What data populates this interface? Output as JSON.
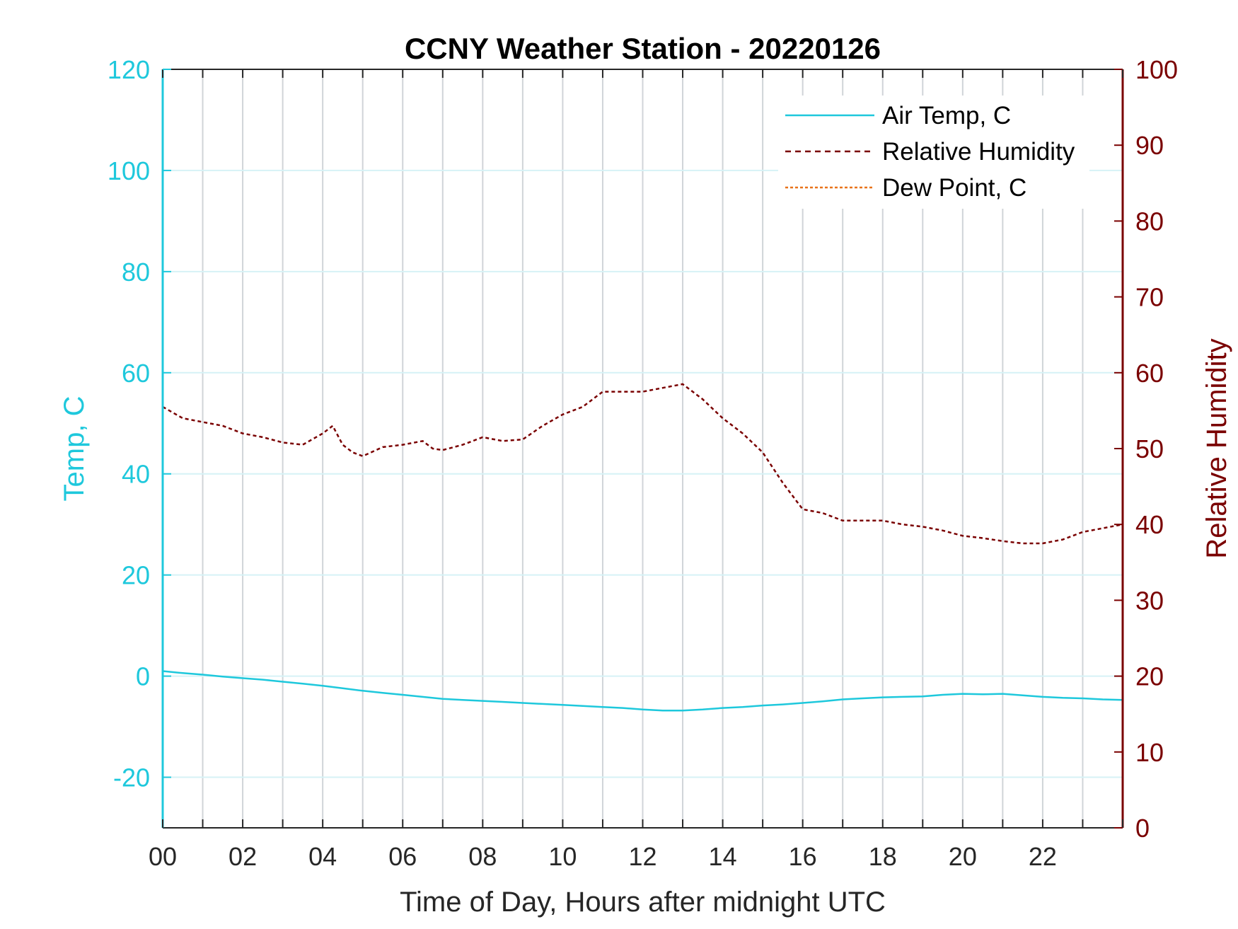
{
  "chart_data": {
    "type": "line",
    "title": "CCNY Weather Station - 20220126",
    "xlabel": "Time of Day, Hours after midnight UTC",
    "ylabel_left": "Temp, C",
    "ylabel_right": "Relative Humidity",
    "xlim": [
      0,
      24
    ],
    "ylim_left": [
      -30,
      120
    ],
    "ylim_right": [
      0,
      100
    ],
    "x_ticks": [
      0,
      2,
      4,
      6,
      8,
      10,
      12,
      14,
      16,
      18,
      20,
      22
    ],
    "x_tick_labels": [
      "00",
      "02",
      "04",
      "06",
      "08",
      "10",
      "12",
      "14",
      "16",
      "18",
      "20",
      "22"
    ],
    "y_left_ticks": [
      -20,
      0,
      20,
      40,
      60,
      80,
      100,
      120
    ],
    "y_right_ticks": [
      0,
      10,
      20,
      30,
      40,
      50,
      60,
      70,
      80,
      90,
      100
    ],
    "grid": true,
    "legend_position": "top-right",
    "colors": {
      "temp": "#1ec8dc",
      "humidity": "#7a0000",
      "dewpoint": "#e8731a",
      "grid_vertical": "#d0d4d8",
      "grid_horizontal": "#d6f2f6"
    },
    "series": [
      {
        "name": "Air Temp, C",
        "axis": "left",
        "style": "solid",
        "x": [
          0,
          0.5,
          1,
          1.5,
          2,
          2.5,
          3,
          3.5,
          4,
          4.5,
          5,
          5.5,
          6,
          6.5,
          7,
          7.5,
          8,
          8.5,
          9,
          9.5,
          10,
          10.5,
          11,
          11.5,
          12,
          12.5,
          13,
          13.5,
          14,
          14.5,
          15,
          15.5,
          16,
          16.5,
          17,
          17.5,
          18,
          18.5,
          19,
          19.5,
          20,
          20.5,
          21,
          21.5,
          22,
          22.5,
          23,
          23.5,
          24
        ],
        "values": [
          1.0,
          0.6,
          0.3,
          -0.1,
          -0.4,
          -0.7,
          -1.1,
          -1.5,
          -1.9,
          -2.4,
          -2.9,
          -3.3,
          -3.7,
          -4.1,
          -4.5,
          -4.7,
          -4.9,
          -5.1,
          -5.3,
          -5.5,
          -5.7,
          -5.9,
          -6.1,
          -6.3,
          -6.6,
          -6.8,
          -6.8,
          -6.6,
          -6.3,
          -6.1,
          -5.8,
          -5.6,
          -5.3,
          -5.0,
          -4.6,
          -4.4,
          -4.2,
          -4.1,
          -4.0,
          -3.7,
          -3.5,
          -3.6,
          -3.5,
          -3.8,
          -4.1,
          -4.3,
          -4.4,
          -4.6,
          -4.7
        ]
      },
      {
        "name": "Relative Humidity",
        "axis": "right",
        "style": "dashed",
        "x": [
          0,
          0.5,
          1,
          1.5,
          2,
          2.5,
          3,
          3.5,
          4,
          4.25,
          4.5,
          4.75,
          5,
          5.5,
          6,
          6.5,
          6.75,
          7,
          7.5,
          8,
          8.5,
          9,
          9.5,
          10,
          10.5,
          11,
          11.5,
          12,
          12.5,
          13,
          13.5,
          14,
          14.5,
          15,
          15.5,
          16,
          16.5,
          17,
          17.5,
          18,
          18.5,
          19,
          19.5,
          20,
          20.5,
          21,
          21.5,
          22,
          22.5,
          23,
          23.5,
          24
        ],
        "values": [
          55.5,
          54.0,
          53.5,
          53.0,
          52.0,
          51.5,
          50.8,
          50.5,
          52.0,
          53.0,
          50.5,
          49.5,
          49.0,
          50.2,
          50.5,
          51.0,
          50.0,
          49.8,
          50.5,
          51.5,
          51.0,
          51.2,
          53.0,
          54.5,
          55.5,
          57.5,
          57.5,
          57.5,
          58.0,
          58.5,
          56.5,
          54.0,
          52.0,
          49.5,
          45.5,
          42.0,
          41.5,
          40.5,
          40.5,
          40.5,
          40.0,
          39.7,
          39.2,
          38.5,
          38.2,
          37.8,
          37.5,
          37.5,
          38.0,
          39.0,
          39.5,
          40.0
        ]
      },
      {
        "name": "Dew Point, C",
        "axis": "left",
        "style": "dashed",
        "x": [],
        "values": []
      }
    ]
  }
}
